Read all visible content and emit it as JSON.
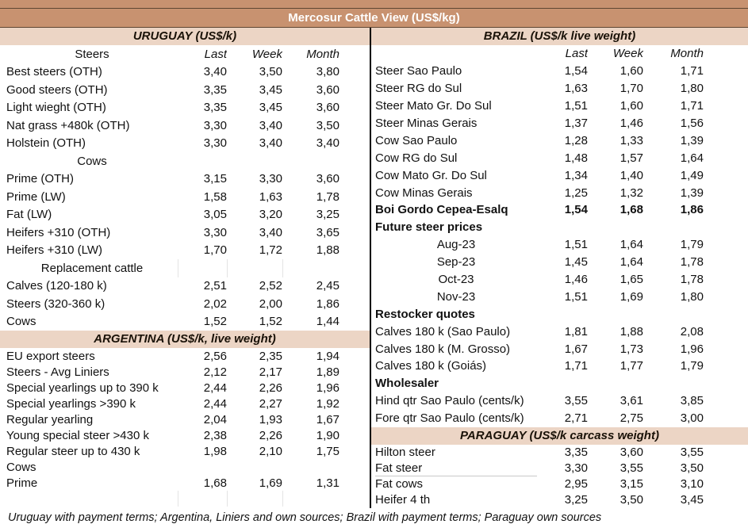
{
  "title": "Mercosur Cattle View (US$/kg)",
  "footer": "Uruguay with payment terms; Argentina, Liniers and own sources; Brazil with payment terms; Paraguay own sources",
  "colors": {
    "title_bar": "#c89270",
    "section_band": "#ecd5c5",
    "title_text": "#ffffff",
    "divider": "#000000"
  },
  "left": {
    "sections": [
      {
        "band": "URUGUAY (US$/k)",
        "header": {
          "label": "Steers",
          "cols": [
            "Last",
            "Week",
            "Month"
          ]
        },
        "rows": [
          {
            "label": "Best steers (OTH)",
            "last": "3,40",
            "week": "3,50",
            "month": "3,80"
          },
          {
            "label": "Good steers (OTH)",
            "last": "3,35",
            "week": "3,45",
            "month": "3,60"
          },
          {
            "label": "Light wieght (OTH)",
            "last": "3,35",
            "week": "3,45",
            "month": "3,60"
          },
          {
            "label": "Nat grass +480k (OTH)",
            "last": "3,30",
            "week": "3,40",
            "month": "3,50"
          },
          {
            "label": "Holstein (OTH)",
            "last": "3,30",
            "week": "3,40",
            "month": "3,40"
          },
          {
            "label": "Cows",
            "type": "center"
          },
          {
            "label": "Prime (OTH)",
            "last": "3,15",
            "week": "3,30",
            "month": "3,60"
          },
          {
            "label": "Prime (LW)",
            "last": "1,58",
            "week": "1,63",
            "month": "1,78"
          },
          {
            "label": "Fat (LW)",
            "last": "3,05",
            "week": "3,20",
            "month": "3,25"
          },
          {
            "label": "Heifers +310 (OTH)",
            "last": "3,30",
            "week": "3,40",
            "month": "3,65"
          },
          {
            "label": "Heifers +310 (LW)",
            "last": "1,70",
            "week": "1,72",
            "month": "1,88"
          },
          {
            "label": "Replacement cattle",
            "type": "center",
            "gridy": true
          },
          {
            "label": "Calves (120-180 k)",
            "last": "2,51",
            "week": "2,52",
            "month": "2,45"
          },
          {
            "label": "Steers (320-360 k)",
            "last": "2,02",
            "week": "2,00",
            "month": "1,86"
          },
          {
            "label": "Cows",
            "last": "1,52",
            "week": "1,52",
            "month": "1,44"
          }
        ]
      },
      {
        "band": "ARGENTINA (US$/k, live weight)",
        "rows": [
          {
            "label": "EU export steers",
            "last": "2,56",
            "week": "2,35",
            "month": "1,94"
          },
          {
            "label": "Steers - Avg Liniers",
            "last": "2,12",
            "week": "2,17",
            "month": "1,89"
          },
          {
            "label": "Special yearlings up to 390 k",
            "last": "2,44",
            "week": "2,26",
            "month": "1,96"
          },
          {
            "label": "Special yearlings >390 k",
            "last": "2,44",
            "week": "2,27",
            "month": "1,92"
          },
          {
            "label": "Regular yearling",
            "last": "2,04",
            "week": "1,93",
            "month": "1,67"
          },
          {
            "label": "Young special steer >430 k",
            "last": "2,38",
            "week": "2,26",
            "month": "1,90"
          },
          {
            "label": "Regular steer up to 430 k",
            "last": "1,98",
            "week": "2,10",
            "month": "1,75"
          },
          {
            "label": "Cows"
          },
          {
            "label": "Prime",
            "last": "1,68",
            "week": "1,69",
            "month": "1,31"
          },
          {
            "label": "",
            "type": "spacer",
            "gridy": true
          }
        ]
      }
    ]
  },
  "right": {
    "sections": [
      {
        "band": "BRAZIL  (US$/k live weight)",
        "header": {
          "label": "",
          "cols": [
            "Last",
            "Week",
            "Month"
          ]
        },
        "rows": [
          {
            "label": "Steer Sao Paulo",
            "last": "1,54",
            "week": "1,60",
            "month": "1,71"
          },
          {
            "label": "Steer RG do Sul",
            "last": "1,63",
            "week": "1,70",
            "month": "1,80"
          },
          {
            "label": "Steer Mato Gr. Do Sul",
            "last": "1,51",
            "week": "1,60",
            "month": "1,71"
          },
          {
            "label": "Steer Minas Gerais",
            "last": "1,37",
            "week": "1,46",
            "month": "1,56"
          },
          {
            "label": "Cow Sao Paulo",
            "last": "1,28",
            "week": "1,33",
            "month": "1,39"
          },
          {
            "label": "Cow RG do Sul",
            "last": "1,48",
            "week": "1,57",
            "month": "1,64"
          },
          {
            "label": "Cow Mato Gr. Do Sul",
            "last": "1,34",
            "week": "1,40",
            "month": "1,49"
          },
          {
            "label": "Cow Minas Gerais",
            "last": "1,25",
            "week": "1,32",
            "month": "1,39"
          },
          {
            "label": "Boi Gordo Cepea-Esalq",
            "last": "1,54",
            "week": "1,68",
            "month": "1,86",
            "type": "bold"
          },
          {
            "label": "Future steer prices",
            "type": "bold"
          },
          {
            "label": "Aug-23",
            "last": "1,51",
            "week": "1,64",
            "month": "1,79",
            "type": "center"
          },
          {
            "label": "Sep-23",
            "last": "1,45",
            "week": "1,64",
            "month": "1,78",
            "type": "center"
          },
          {
            "label": "Oct-23",
            "last": "1,46",
            "week": "1,65",
            "month": "1,78",
            "type": "center"
          },
          {
            "label": "Nov-23",
            "last": "1,51",
            "week": "1,69",
            "month": "1,80",
            "type": "center"
          },
          {
            "label": "Restocker quotes",
            "type": "bold"
          },
          {
            "label": "Calves 180 k (Sao Paulo)",
            "last": "1,81",
            "week": "1,88",
            "month": "2,08"
          },
          {
            "label": "Calves 180 k (M. Grosso)",
            "last": "1,67",
            "week": "1,73",
            "month": "1,96"
          },
          {
            "label": "Calves 180 k (Goiás)",
            "last": "1,71",
            "week": "1,77",
            "month": "1,79"
          },
          {
            "label": "Wholesaler",
            "type": "bold"
          },
          {
            "label": "Hind qtr Sao Paulo (cents/k)",
            "last": "3,55",
            "week": "3,61",
            "month": "3,85"
          },
          {
            "label": "Fore qtr Sao Paulo (cents/k)",
            "last": "2,71",
            "week": "2,75",
            "month": "3,00"
          }
        ]
      },
      {
        "band": "PARAGUAY  (US$/k carcass weight)",
        "rows": [
          {
            "label": "Hilton steer",
            "last": "3,35",
            "week": "3,60",
            "month": "3,55"
          },
          {
            "label": "Fat steer",
            "last": "3,30",
            "week": "3,55",
            "month": "3,50",
            "rule": true
          },
          {
            "label": "Fat cows",
            "last": "2,95",
            "week": "3,15",
            "month": "3,10"
          },
          {
            "label": "Heifer 4 th",
            "last": "3,25",
            "week": "3,50",
            "month": "3,45"
          }
        ]
      }
    ]
  }
}
